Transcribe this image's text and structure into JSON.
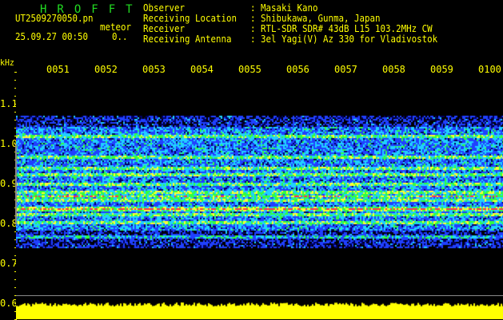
{
  "header": {
    "brand": "HROFFT",
    "filename": "UT2509270050.pn",
    "subscript": "meteor",
    "datetime": "25.09.27 00:50",
    "extra": "0..",
    "info": [
      {
        "label": "Observer",
        "value": "Masaki Kano"
      },
      {
        "label": "Receiving Location",
        "value": "Shibukawa, Gunma, Japan"
      },
      {
        "label": "Receiver",
        "value": "RTL-SDR SDR# 43dB L15 103.2MHz CW"
      },
      {
        "label": "Receiving Antenna",
        "value": "3el Yagi(V) Az 330 for Vladivostok"
      }
    ]
  },
  "axis": {
    "unit": "kHz",
    "time_labels": [
      "0051",
      "0052",
      "0053",
      "0054",
      "0055",
      "0056",
      "0057",
      "0058",
      "0059",
      "0100"
    ],
    "freq_labels": [
      "1.1",
      "1.0",
      "0.9",
      "0.8",
      "0.7",
      "0.6"
    ]
  },
  "colors": {
    "text": "#ffff00",
    "brand": "#22dd22",
    "background": "#000000"
  }
}
